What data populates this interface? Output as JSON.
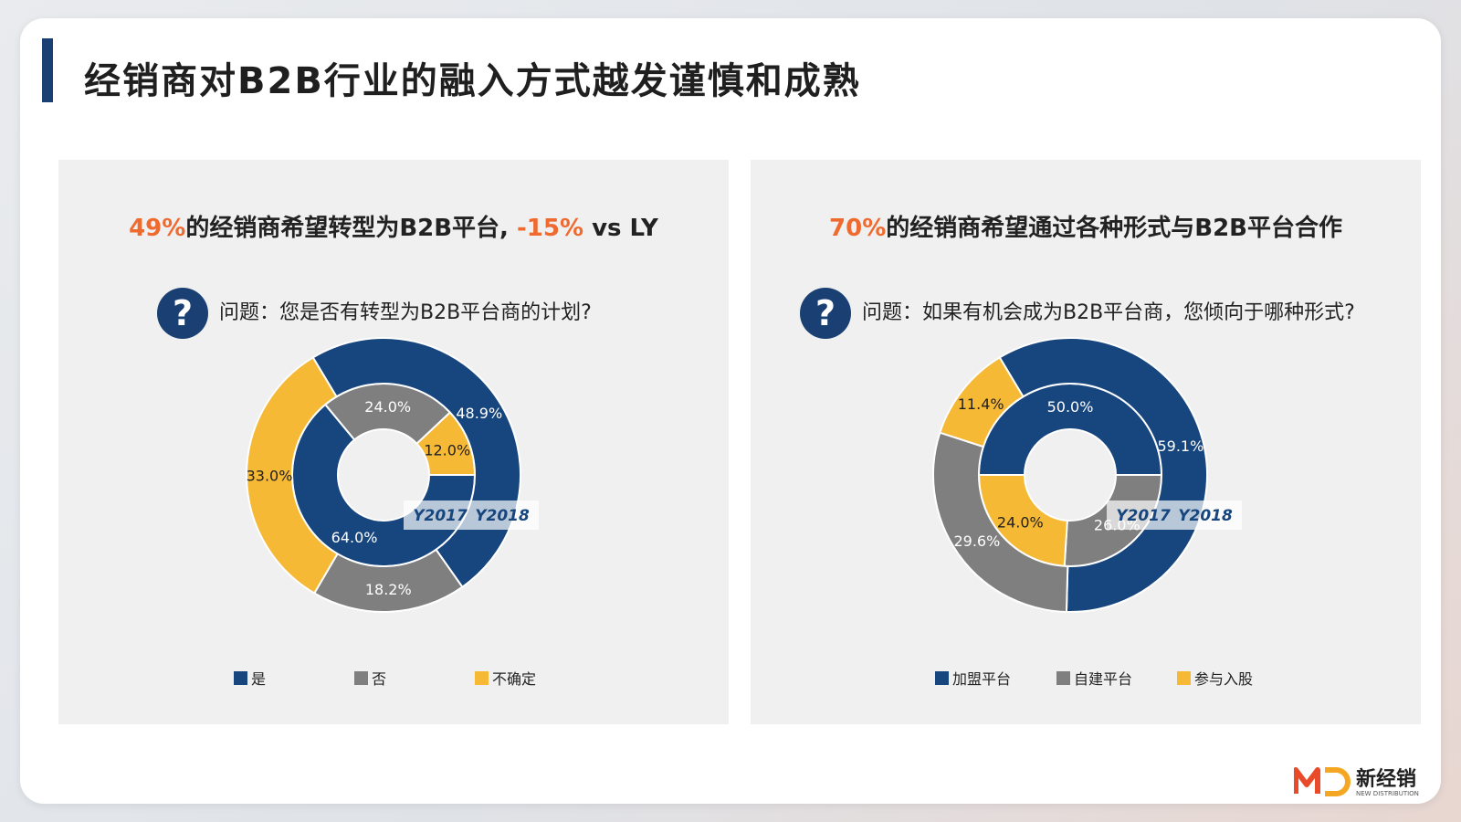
{
  "page_title": "经销商对B2B行业的融入方式越发谨慎和成熟",
  "left": {
    "headline_pct": "49%",
    "headline_mid": "的经销商希望转型为B2B平台, ",
    "headline_delta": "-15%",
    "headline_tail": " vs LY",
    "question": "问题：您是否有转型为B2B平台商的计划?",
    "question_mark": "?",
    "legend": [
      "是",
      "否",
      "不确定"
    ],
    "ring_labels": {
      "inner": "Y2017",
      "outer": "Y2018"
    }
  },
  "right": {
    "headline_pct": "70%",
    "headline_rest": "的经销商希望通过各种形式与B2B平台合作",
    "question": "问题：如果有机会成为B2B平台商，您倾向于哪种形式?",
    "question_mark": "?",
    "legend": [
      "加盟平台",
      "自建平台",
      "参与入股"
    ],
    "ring_labels": {
      "inner": "Y2017",
      "outer": "Y2018"
    }
  },
  "colors": {
    "blue": "#17467e",
    "gray": "#7f7f7f",
    "yellow": "#f5b936",
    "accent": "#ef6a2f",
    "navy": "#1a3f73"
  },
  "logo": {
    "brand": "新经销",
    "sub": "NEW DISTRIBUTION"
  },
  "chart_data": [
    {
      "type": "pie",
      "variant": "nested-donut",
      "title": "49%的经销商希望转型为B2B平台, -15% vs LY",
      "categories": [
        "是",
        "否",
        "不确定"
      ],
      "series": [
        {
          "name": "Y2017",
          "ring": "inner",
          "values": [
            64.0,
            24.0,
            12.0
          ]
        },
        {
          "name": "Y2018",
          "ring": "outer",
          "values": [
            48.9,
            18.2,
            33.0
          ]
        }
      ],
      "legend": "bottom"
    },
    {
      "type": "pie",
      "variant": "nested-donut",
      "title": "70%的经销商希望通过各种形式与B2B平台合作",
      "categories": [
        "加盟平台",
        "自建平台",
        "参与入股"
      ],
      "series": [
        {
          "name": "Y2017",
          "ring": "inner",
          "values": [
            50.0,
            26.0,
            24.0
          ]
        },
        {
          "name": "Y2018",
          "ring": "outer",
          "values": [
            59.1,
            29.6,
            11.4
          ]
        }
      ],
      "legend": "bottom"
    }
  ]
}
